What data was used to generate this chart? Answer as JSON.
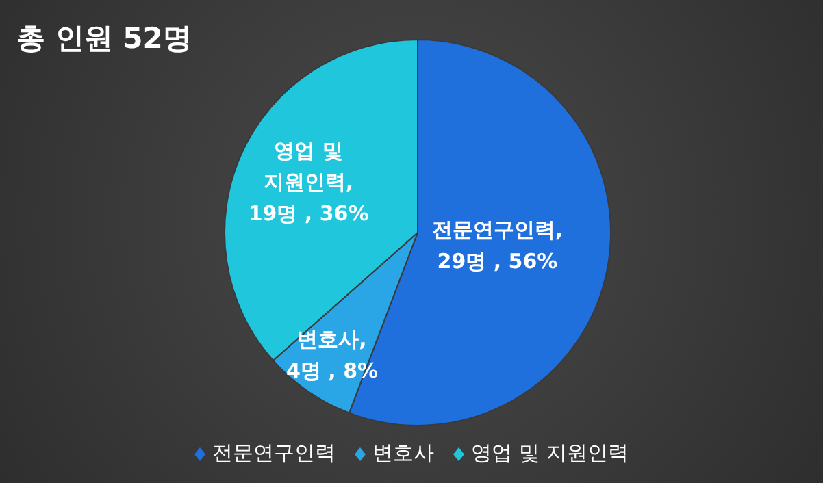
{
  "chart_data": {
    "type": "pie",
    "title": "총 인원 52명",
    "categories": [
      "전문연구인력",
      "변호사",
      "영업 및 지원인력"
    ],
    "values": [
      29,
      4,
      19
    ],
    "value_labels": [
      ", 29명 , 56%",
      ", 4명 , 8%",
      ", 19명 , 36%"
    ],
    "colors": [
      "#1f6fdc",
      "#2aa5e6",
      "#1fc6dc"
    ],
    "legend": "bottom"
  }
}
